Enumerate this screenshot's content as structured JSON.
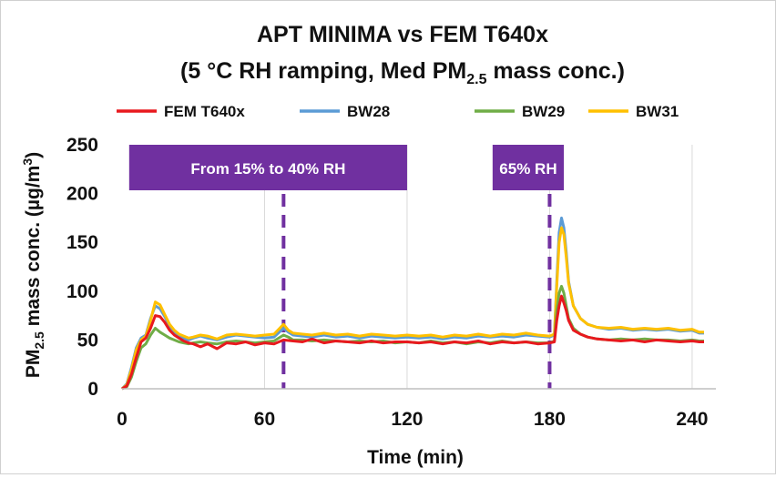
{
  "chart_data": {
    "type": "line",
    "title_line1": "APT MINIMA vs FEM T640x",
    "title_line2_pre": "(5 °C RH ramping, Med PM",
    "title_line2_sub": "2.5",
    "title_line2_post": " mass conc.)",
    "xlabel": "Time (min)",
    "ylabel_pre": "PM",
    "ylabel_sub": "2.5",
    "ylabel_mid": " mass conc. (µg/m",
    "ylabel_sup": "3",
    "ylabel_post": ")",
    "xlim": [
      0,
      250
    ],
    "ylim": [
      0,
      250
    ],
    "xticks": [
      0,
      60,
      120,
      180,
      240
    ],
    "yticks": [
      0,
      50,
      100,
      150,
      200,
      250
    ],
    "grid": "vertical",
    "legend_position": "top",
    "series": [
      {
        "name": "FEM T640x",
        "color": "#e8191e",
        "points": [
          [
            0,
            0
          ],
          [
            2,
            3
          ],
          [
            4,
            15
          ],
          [
            6,
            32
          ],
          [
            8,
            48
          ],
          [
            10,
            52
          ],
          [
            12,
            62
          ],
          [
            14,
            75
          ],
          [
            16,
            74
          ],
          [
            18,
            68
          ],
          [
            20,
            60
          ],
          [
            22,
            55
          ],
          [
            24,
            52
          ],
          [
            26,
            49
          ],
          [
            28,
            47
          ],
          [
            30,
            46
          ],
          [
            33,
            43
          ],
          [
            36,
            46
          ],
          [
            40,
            41
          ],
          [
            44,
            47
          ],
          [
            48,
            46
          ],
          [
            52,
            48
          ],
          [
            56,
            45
          ],
          [
            60,
            47
          ],
          [
            64,
            46
          ],
          [
            68,
            50
          ],
          [
            72,
            49
          ],
          [
            76,
            48
          ],
          [
            80,
            51
          ],
          [
            85,
            47
          ],
          [
            90,
            49
          ],
          [
            95,
            48
          ],
          [
            100,
            47
          ],
          [
            105,
            49
          ],
          [
            110,
            47
          ],
          [
            115,
            48
          ],
          [
            120,
            48
          ],
          [
            125,
            47
          ],
          [
            130,
            48
          ],
          [
            135,
            46
          ],
          [
            140,
            48
          ],
          [
            145,
            47
          ],
          [
            150,
            49
          ],
          [
            155,
            46
          ],
          [
            160,
            48
          ],
          [
            165,
            47
          ],
          [
            170,
            48
          ],
          [
            175,
            46
          ],
          [
            180,
            47
          ],
          [
            182,
            48
          ],
          [
            183,
            70
          ],
          [
            184,
            85
          ],
          [
            185,
            95
          ],
          [
            186,
            88
          ],
          [
            187,
            80
          ],
          [
            188,
            70
          ],
          [
            190,
            60
          ],
          [
            193,
            56
          ],
          [
            196,
            53
          ],
          [
            200,
            51
          ],
          [
            205,
            50
          ],
          [
            210,
            49
          ],
          [
            215,
            50
          ],
          [
            220,
            48
          ],
          [
            225,
            50
          ],
          [
            230,
            49
          ],
          [
            235,
            48
          ],
          [
            240,
            49
          ],
          [
            243,
            48
          ],
          [
            245,
            48
          ]
        ]
      },
      {
        "name": "BW28",
        "color": "#5b9bd5",
        "points": [
          [
            0,
            0
          ],
          [
            2,
            5
          ],
          [
            4,
            22
          ],
          [
            6,
            42
          ],
          [
            8,
            52
          ],
          [
            10,
            55
          ],
          [
            12,
            72
          ],
          [
            14,
            85
          ],
          [
            16,
            82
          ],
          [
            18,
            74
          ],
          [
            20,
            64
          ],
          [
            22,
            58
          ],
          [
            24,
            55
          ],
          [
            26,
            52
          ],
          [
            28,
            50
          ],
          [
            30,
            52
          ],
          [
            33,
            54
          ],
          [
            36,
            52
          ],
          [
            40,
            50
          ],
          [
            44,
            53
          ],
          [
            48,
            55
          ],
          [
            52,
            54
          ],
          [
            56,
            53
          ],
          [
            60,
            52
          ],
          [
            64,
            53
          ],
          [
            68,
            62
          ],
          [
            70,
            58
          ],
          [
            72,
            55
          ],
          [
            76,
            54
          ],
          [
            80,
            53
          ],
          [
            85,
            55
          ],
          [
            90,
            53
          ],
          [
            95,
            54
          ],
          [
            100,
            52
          ],
          [
            105,
            54
          ],
          [
            110,
            53
          ],
          [
            115,
            52
          ],
          [
            120,
            53
          ],
          [
            125,
            52
          ],
          [
            130,
            53
          ],
          [
            135,
            51
          ],
          [
            140,
            53
          ],
          [
            145,
            52
          ],
          [
            150,
            54
          ],
          [
            155,
            53
          ],
          [
            160,
            54
          ],
          [
            165,
            53
          ],
          [
            170,
            55
          ],
          [
            175,
            54
          ],
          [
            180,
            53
          ],
          [
            182,
            55
          ],
          [
            183,
            110
          ],
          [
            184,
            160
          ],
          [
            185,
            175
          ],
          [
            186,
            165
          ],
          [
            187,
            140
          ],
          [
            188,
            110
          ],
          [
            190,
            85
          ],
          [
            193,
            72
          ],
          [
            196,
            66
          ],
          [
            200,
            63
          ],
          [
            205,
            61
          ],
          [
            210,
            62
          ],
          [
            215,
            60
          ],
          [
            220,
            61
          ],
          [
            225,
            60
          ],
          [
            230,
            61
          ],
          [
            235,
            59
          ],
          [
            240,
            60
          ],
          [
            243,
            57
          ],
          [
            245,
            57
          ]
        ]
      },
      {
        "name": "BW29",
        "color": "#70ad47",
        "points": [
          [
            0,
            0
          ],
          [
            2,
            2
          ],
          [
            4,
            12
          ],
          [
            6,
            28
          ],
          [
            8,
            42
          ],
          [
            10,
            46
          ],
          [
            12,
            55
          ],
          [
            14,
            62
          ],
          [
            16,
            58
          ],
          [
            18,
            55
          ],
          [
            20,
            52
          ],
          [
            22,
            50
          ],
          [
            24,
            48
          ],
          [
            26,
            47
          ],
          [
            28,
            46
          ],
          [
            30,
            47
          ],
          [
            33,
            48
          ],
          [
            36,
            47
          ],
          [
            40,
            46
          ],
          [
            44,
            48
          ],
          [
            48,
            49
          ],
          [
            52,
            48
          ],
          [
            56,
            47
          ],
          [
            60,
            48
          ],
          [
            64,
            49
          ],
          [
            68,
            55
          ],
          [
            70,
            53
          ],
          [
            72,
            50
          ],
          [
            76,
            50
          ],
          [
            80,
            49
          ],
          [
            85,
            50
          ],
          [
            90,
            49
          ],
          [
            95,
            48
          ],
          [
            100,
            49
          ],
          [
            105,
            48
          ],
          [
            110,
            49
          ],
          [
            115,
            47
          ],
          [
            120,
            48
          ],
          [
            125,
            47
          ],
          [
            130,
            49
          ],
          [
            135,
            47
          ],
          [
            140,
            48
          ],
          [
            145,
            46
          ],
          [
            150,
            48
          ],
          [
            155,
            47
          ],
          [
            160,
            49
          ],
          [
            165,
            47
          ],
          [
            170,
            48
          ],
          [
            175,
            47
          ],
          [
            180,
            47
          ],
          [
            182,
            49
          ],
          [
            183,
            80
          ],
          [
            184,
            98
          ],
          [
            185,
            105
          ],
          [
            186,
            98
          ],
          [
            187,
            85
          ],
          [
            188,
            72
          ],
          [
            190,
            62
          ],
          [
            193,
            56
          ],
          [
            196,
            53
          ],
          [
            200,
            51
          ],
          [
            205,
            50
          ],
          [
            210,
            51
          ],
          [
            215,
            50
          ],
          [
            220,
            51
          ],
          [
            225,
            50
          ],
          [
            230,
            50
          ],
          [
            235,
            49
          ],
          [
            240,
            50
          ],
          [
            243,
            49
          ],
          [
            245,
            49
          ]
        ]
      },
      {
        "name": "BW31",
        "color": "#ffc000",
        "points": [
          [
            0,
            0
          ],
          [
            2,
            4
          ],
          [
            4,
            20
          ],
          [
            6,
            40
          ],
          [
            8,
            50
          ],
          [
            10,
            54
          ],
          [
            12,
            70
          ],
          [
            14,
            89
          ],
          [
            16,
            86
          ],
          [
            18,
            76
          ],
          [
            20,
            66
          ],
          [
            22,
            60
          ],
          [
            24,
            56
          ],
          [
            26,
            54
          ],
          [
            28,
            52
          ],
          [
            30,
            53
          ],
          [
            33,
            55
          ],
          [
            36,
            54
          ],
          [
            40,
            51
          ],
          [
            44,
            55
          ],
          [
            48,
            56
          ],
          [
            52,
            55
          ],
          [
            56,
            54
          ],
          [
            60,
            55
          ],
          [
            64,
            56
          ],
          [
            68,
            66
          ],
          [
            70,
            60
          ],
          [
            72,
            57
          ],
          [
            76,
            56
          ],
          [
            80,
            55
          ],
          [
            85,
            57
          ],
          [
            90,
            55
          ],
          [
            95,
            56
          ],
          [
            100,
            54
          ],
          [
            105,
            56
          ],
          [
            110,
            55
          ],
          [
            115,
            54
          ],
          [
            120,
            55
          ],
          [
            125,
            54
          ],
          [
            130,
            55
          ],
          [
            135,
            53
          ],
          [
            140,
            55
          ],
          [
            145,
            54
          ],
          [
            150,
            56
          ],
          [
            155,
            54
          ],
          [
            160,
            56
          ],
          [
            165,
            55
          ],
          [
            170,
            57
          ],
          [
            175,
            55
          ],
          [
            180,
            54
          ],
          [
            182,
            56
          ],
          [
            183,
            105
          ],
          [
            184,
            150
          ],
          [
            185,
            165
          ],
          [
            186,
            158
          ],
          [
            187,
            135
          ],
          [
            188,
            108
          ],
          [
            190,
            85
          ],
          [
            193,
            72
          ],
          [
            196,
            66
          ],
          [
            200,
            63
          ],
          [
            205,
            62
          ],
          [
            210,
            63
          ],
          [
            215,
            61
          ],
          [
            220,
            62
          ],
          [
            225,
            61
          ],
          [
            230,
            62
          ],
          [
            235,
            60
          ],
          [
            240,
            61
          ],
          [
            243,
            58
          ],
          [
            245,
            58
          ]
        ]
      }
    ],
    "annotations": [
      {
        "label": "From 15% to 40% RH",
        "x_start": 3,
        "x_end": 120,
        "marker_x": 68
      },
      {
        "label": "65% RH",
        "x_start": 156,
        "x_end": 186,
        "marker_x": 180
      }
    ],
    "annotation_color": "#7030a0"
  }
}
